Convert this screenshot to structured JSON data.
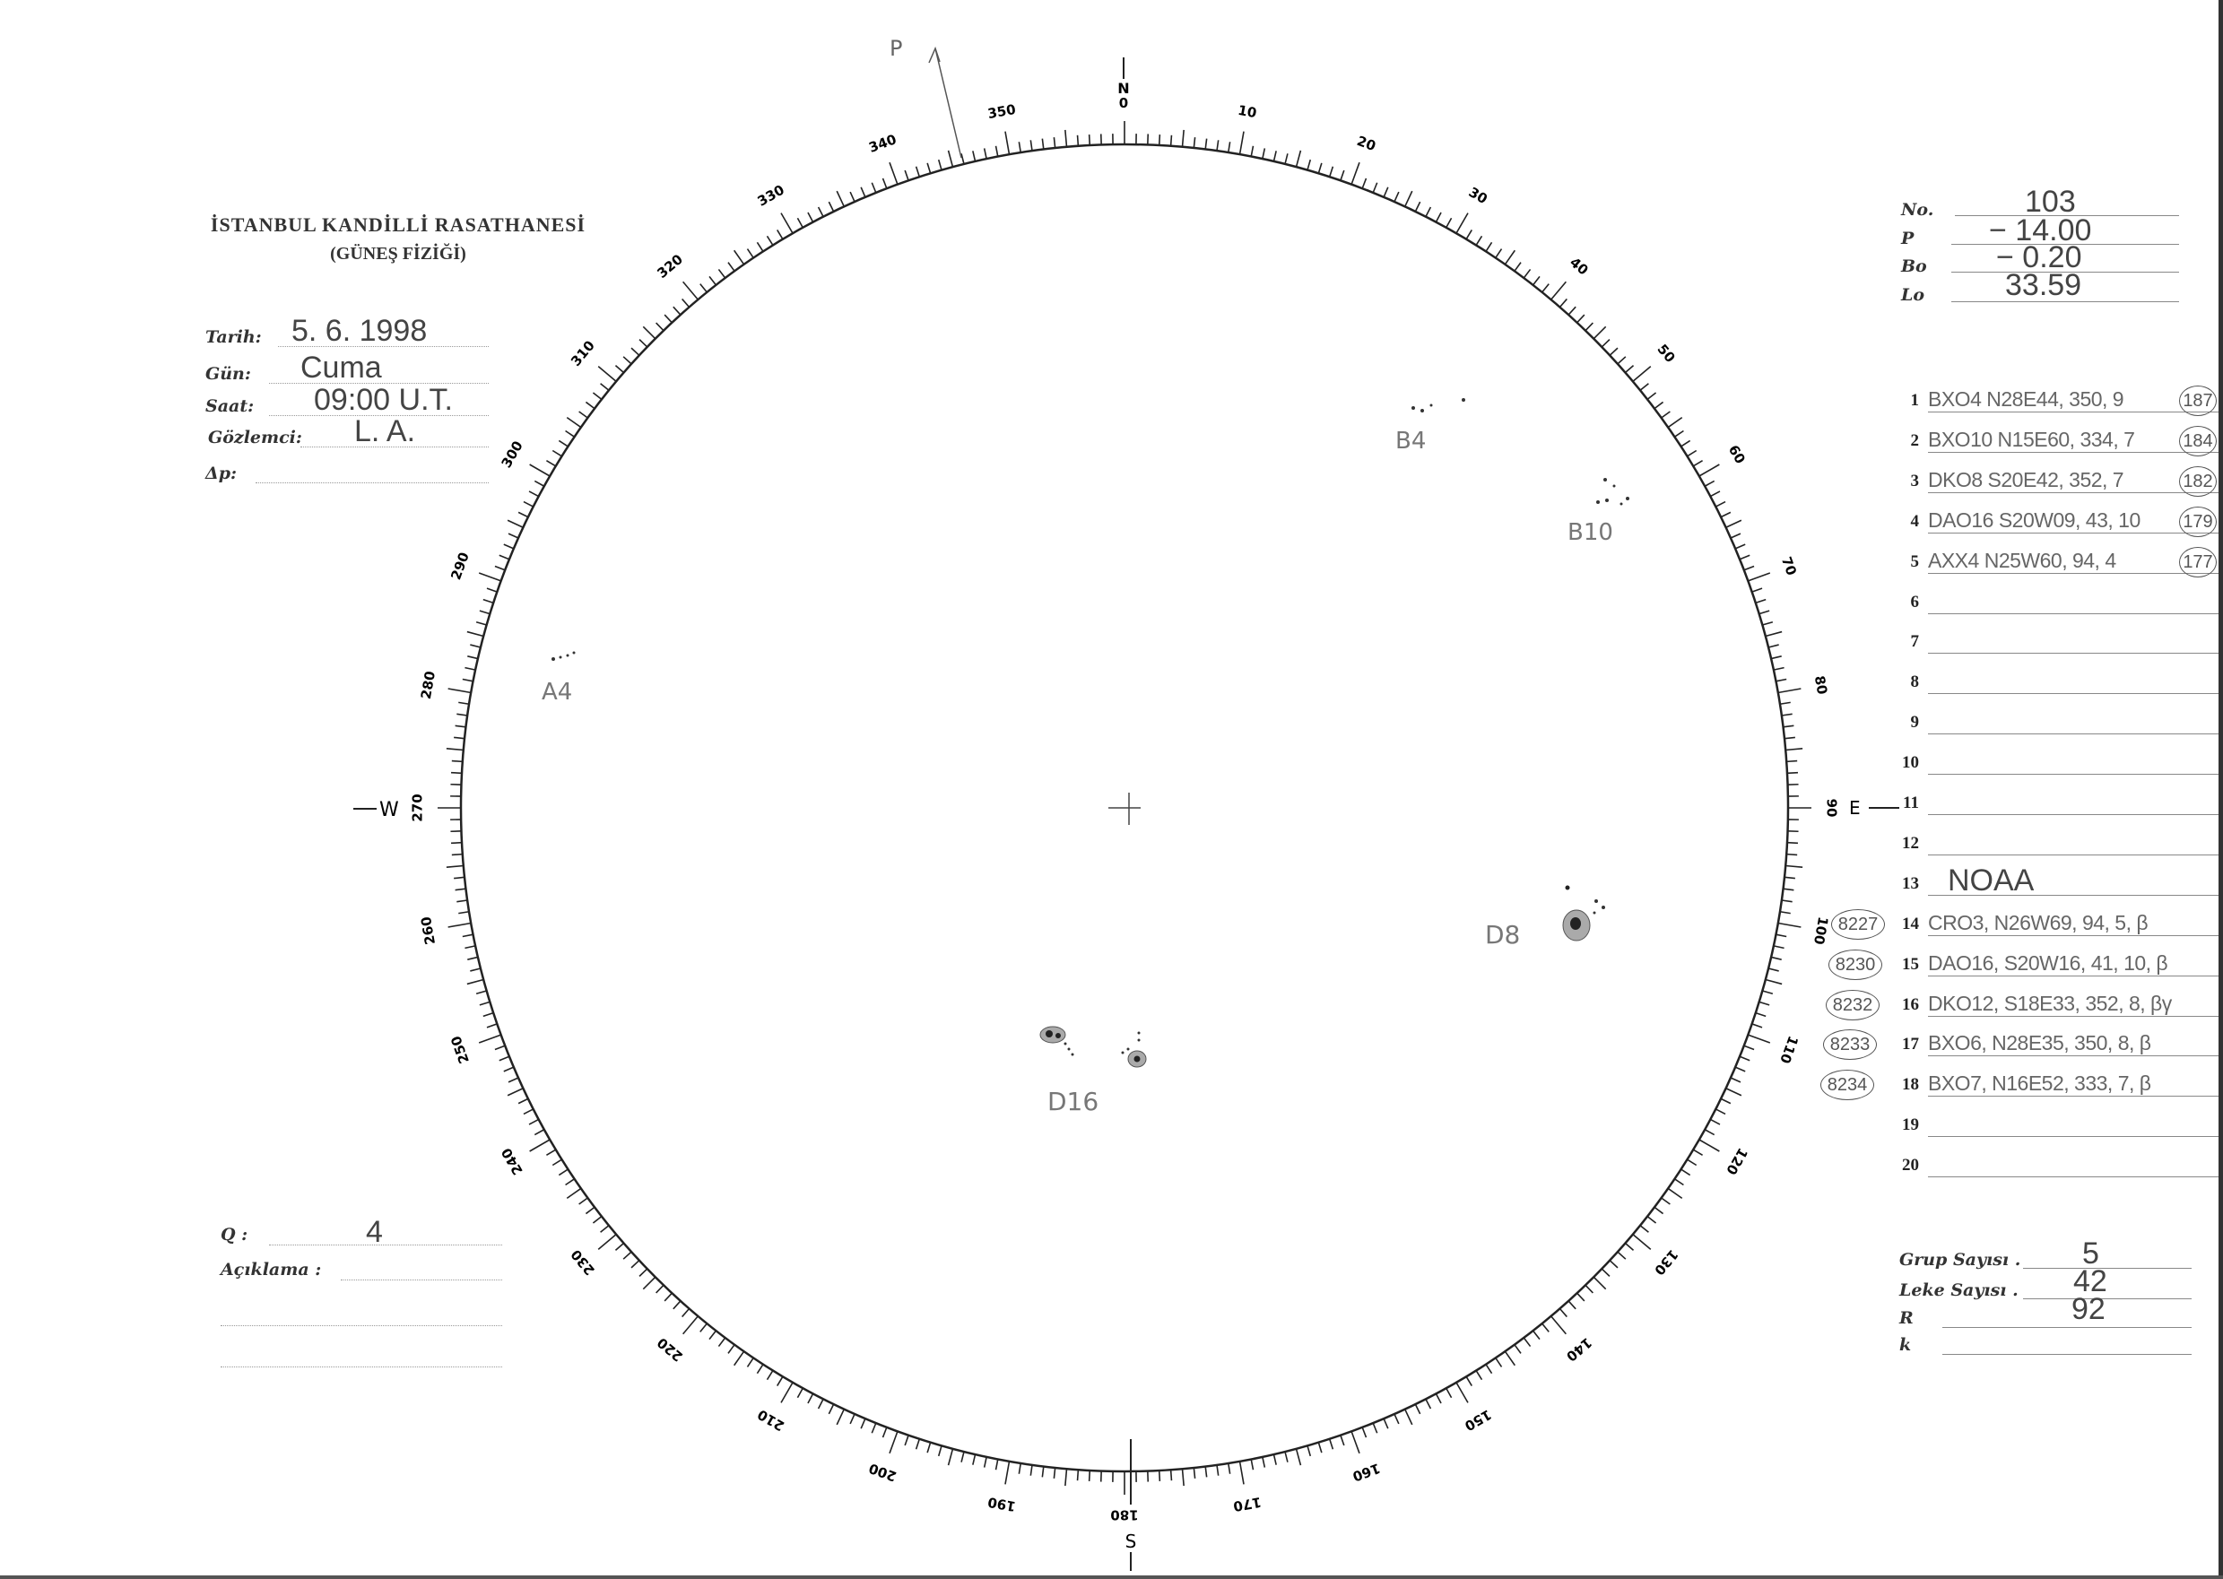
{
  "header": {
    "title": "İSTANBUL KANDİLLİ RASATHANESİ",
    "subtitle": "(GÜNEŞ FİZİĞİ)"
  },
  "observation": {
    "fields": [
      {
        "label": "Tarih:",
        "value": "5. 6. 1998"
      },
      {
        "label": "Gün:",
        "value": "Cuma"
      },
      {
        "label": "Saat:",
        "value": "09:00  U.T."
      },
      {
        "label": "Gözlemci:",
        "value": "L. A."
      },
      {
        "label": "Δp:",
        "value": ""
      }
    ]
  },
  "quality": {
    "label": "Q :",
    "value": "4",
    "remark_label": "Açıklama :"
  },
  "ephemeris": [
    {
      "label": "No.",
      "value": "103"
    },
    {
      "label": "P",
      "value": "− 14.00"
    },
    {
      "label": "Bo",
      "value": "− 0.20"
    },
    {
      "label": "Lo",
      "value": "33.59"
    }
  ],
  "groups": [
    {
      "n": "1",
      "text": "BXO4  N28E44, 350, 9",
      "circle": "187",
      "noaa": ""
    },
    {
      "n": "2",
      "text": "BXO10  N15E60, 334, 7",
      "circle": "184",
      "noaa": ""
    },
    {
      "n": "3",
      "text": "DKO8  S20E42, 352, 7",
      "circle": "182",
      "noaa": ""
    },
    {
      "n": "4",
      "text": "DAO16  S20W09, 43, 10",
      "circle": "179",
      "noaa": ""
    },
    {
      "n": "5",
      "text": "AXX4  N25W60, 94, 4",
      "circle": "177",
      "noaa": ""
    },
    {
      "n": "6",
      "text": "",
      "circle": "",
      "noaa": ""
    },
    {
      "n": "7",
      "text": "",
      "circle": "",
      "noaa": ""
    },
    {
      "n": "8",
      "text": "",
      "circle": "",
      "noaa": ""
    },
    {
      "n": "9",
      "text": "",
      "circle": "",
      "noaa": ""
    },
    {
      "n": "10",
      "text": "",
      "circle": "",
      "noaa": ""
    },
    {
      "n": "11",
      "text": "",
      "circle": "",
      "noaa": ""
    },
    {
      "n": "12",
      "text": "",
      "circle": "",
      "noaa": ""
    },
    {
      "n": "13",
      "text": "NOAA",
      "circle": "",
      "noaa": ""
    },
    {
      "n": "14",
      "text": "CRO3, N26W69, 94, 5, β",
      "circle": "",
      "noaa": "8227"
    },
    {
      "n": "15",
      "text": "DAO16, S20W16, 41, 10, β",
      "circle": "",
      "noaa": "8230"
    },
    {
      "n": "16",
      "text": "DKO12, S18E33, 352, 8, βγ",
      "circle": "",
      "noaa": "8232"
    },
    {
      "n": "17",
      "text": "BXO6, N28E35, 350, 8, β",
      "circle": "",
      "noaa": "8233"
    },
    {
      "n": "18",
      "text": "BXO7, N16E52, 333, 7, β",
      "circle": "",
      "noaa": "8234"
    },
    {
      "n": "19",
      "text": "",
      "circle": "",
      "noaa": ""
    },
    {
      "n": "20",
      "text": "",
      "circle": "",
      "noaa": ""
    }
  ],
  "totals": [
    {
      "label": "Grup Sayısı .",
      "value": "5"
    },
    {
      "label": "Leke Sayısı .",
      "value": "42"
    },
    {
      "label": "R",
      "value": "92"
    },
    {
      "label": "k",
      "value": ""
    }
  ],
  "disk": {
    "north": "N",
    "north_zero": "0",
    "south": "S",
    "east": "E",
    "west": "W",
    "pole_label": "P",
    "scale_labels": [
      "10",
      "20",
      "30",
      "40",
      "50",
      "60",
      "70",
      "80",
      "90",
      "100",
      "110",
      "120",
      "130",
      "140",
      "150",
      "160",
      "170",
      "180",
      "190",
      "200",
      "210",
      "220",
      "230",
      "240",
      "250",
      "260",
      "270",
      "280",
      "290",
      "300",
      "310",
      "320",
      "330",
      "340",
      "350"
    ],
    "spot_labels": {
      "b4": "B4",
      "b10": "B10",
      "a4": "A4",
      "d8": "D8",
      "d16": "D16"
    }
  }
}
